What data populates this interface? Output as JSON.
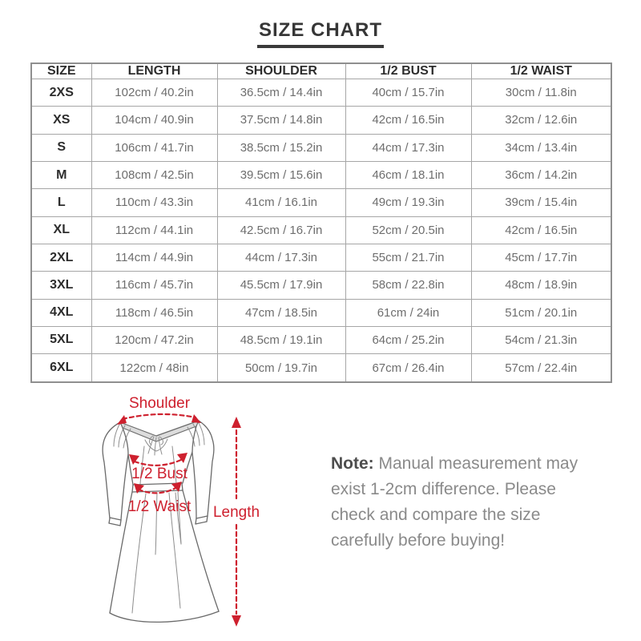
{
  "title": "SIZE CHART",
  "table": {
    "headers": [
      "SIZE",
      "LENGTH",
      "SHOULDER",
      "1/2 BUST",
      "1/2 WAIST"
    ],
    "rows": [
      [
        "2XS",
        "102cm / 40.2in",
        "36.5cm / 14.4in",
        "40cm / 15.7in",
        "30cm / 11.8in"
      ],
      [
        "XS",
        "104cm / 40.9in",
        "37.5cm / 14.8in",
        "42cm / 16.5in",
        "32cm / 12.6in"
      ],
      [
        "S",
        "106cm / 41.7in",
        "38.5cm / 15.2in",
        "44cm / 17.3in",
        "34cm / 13.4in"
      ],
      [
        "M",
        "108cm / 42.5in",
        "39.5cm / 15.6in",
        "46cm / 18.1in",
        "36cm / 14.2in"
      ],
      [
        "L",
        "110cm / 43.3in",
        "41cm / 16.1in",
        "49cm / 19.3in",
        "39cm / 15.4in"
      ],
      [
        "XL",
        "112cm / 44.1in",
        "42.5cm / 16.7in",
        "52cm / 20.5in",
        "42cm / 16.5in"
      ],
      [
        "2XL",
        "114cm / 44.9in",
        "44cm / 17.3in",
        "55cm / 21.7in",
        "45cm / 17.7in"
      ],
      [
        "3XL",
        "116cm / 45.7in",
        "45.5cm / 17.9in",
        "58cm / 22.8in",
        "48cm / 18.9in"
      ],
      [
        "4XL",
        "118cm / 46.5in",
        "47cm / 18.5in",
        "61cm / 24in",
        "51cm / 20.1in"
      ],
      [
        "5XL",
        "120cm / 47.2in",
        "48.5cm / 19.1in",
        "64cm / 25.2in",
        "54cm / 21.3in"
      ],
      [
        "6XL",
        "122cm / 48in",
        "50cm / 19.7in",
        "67cm / 26.4in",
        "57cm / 22.4in"
      ]
    ]
  },
  "diagram": {
    "shoulder_label": "Shoulder",
    "bust_label": "1/2 Bust",
    "waist_label": "1/2 Waist",
    "length_label": "Length"
  },
  "note": {
    "label": "Note:",
    "text": " Manual measurement may exist 1-2cm difference. Please check and compare the size carefully before buying!"
  },
  "colors": {
    "accent_red": "#ce202e",
    "table_border": "#a6a6a6",
    "text_dark": "#2d2d2d",
    "text_gray": "#6e6e6e",
    "note_gray": "#8a8a8a",
    "line_gray": "#6a6a6a"
  }
}
